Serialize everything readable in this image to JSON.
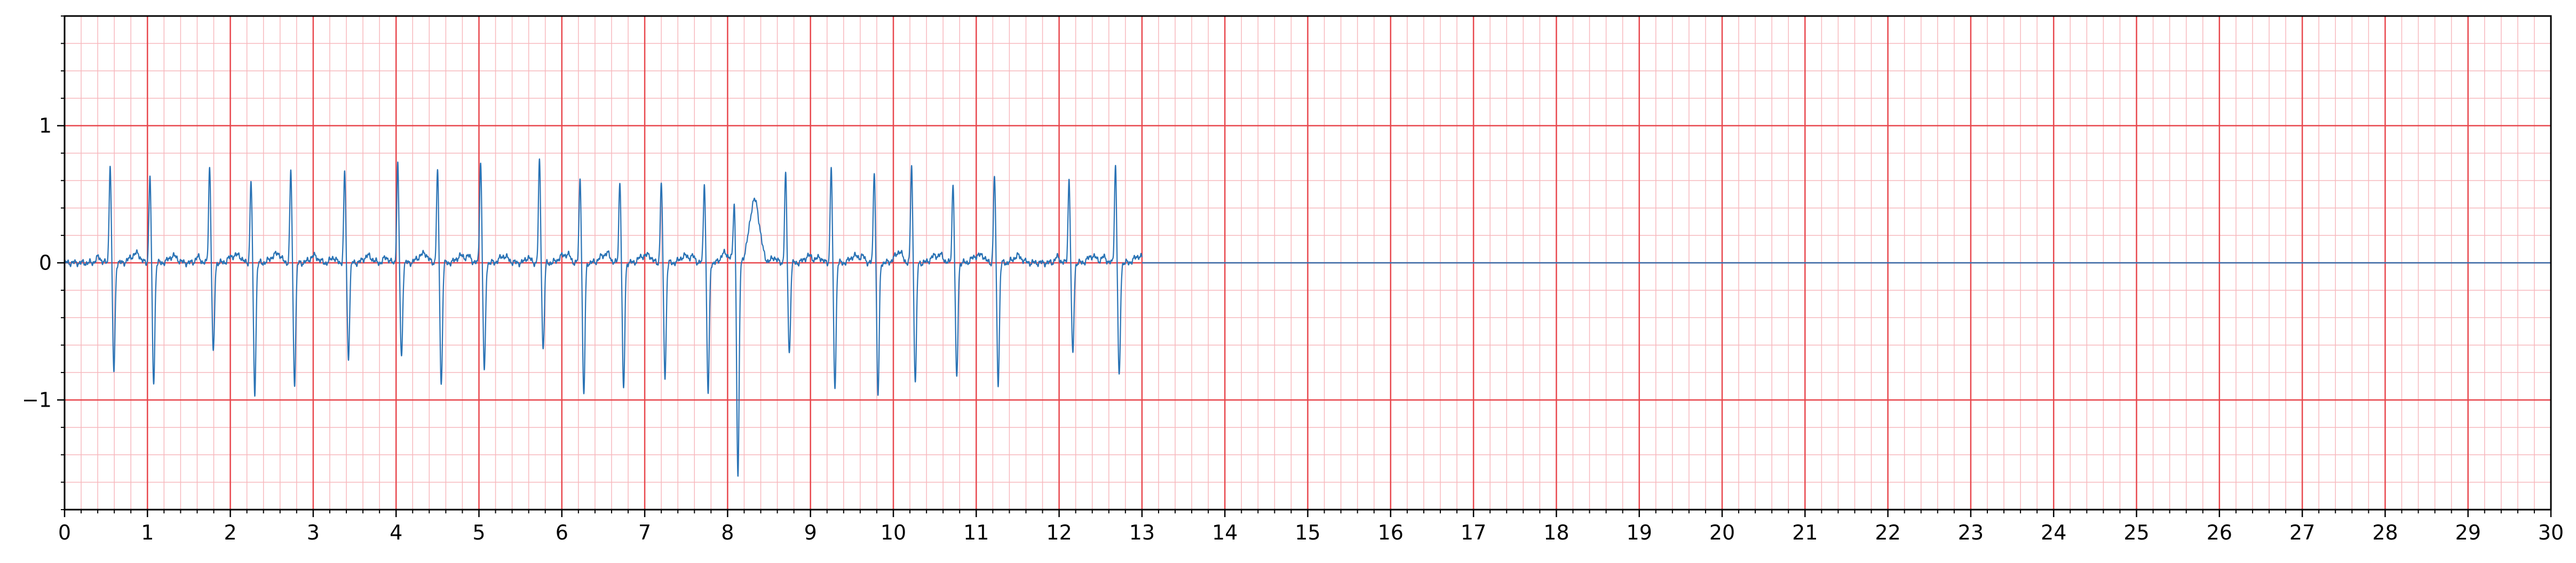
{
  "chart_data": {
    "type": "line",
    "title": "",
    "xlabel": "",
    "ylabel": "",
    "xlim": [
      0,
      30
    ],
    "ylim": [
      -1.8,
      1.8
    ],
    "x_major_ticks": [
      0,
      1,
      2,
      3,
      4,
      5,
      6,
      7,
      8,
      9,
      10,
      11,
      12,
      13,
      14,
      15,
      16,
      17,
      18,
      19,
      20,
      21,
      22,
      23,
      24,
      25,
      26,
      27,
      28,
      29,
      30
    ],
    "x_tick_labels": [
      "0",
      "1",
      "2",
      "3",
      "4",
      "5",
      "6",
      "7",
      "8",
      "9",
      "10",
      "11",
      "12",
      "13",
      "14",
      "15",
      "16",
      "17",
      "18",
      "19",
      "20",
      "21",
      "22",
      "23",
      "24",
      "25",
      "26",
      "27",
      "28",
      "29",
      "30"
    ],
    "y_major_ticks": [
      -1,
      0,
      1
    ],
    "y_tick_labels": [
      "−1",
      "0",
      "1"
    ],
    "grid": "on",
    "grid_major": "red",
    "grid_minor": "light red",
    "grid_major_color": "#e8474d",
    "grid_minor_color": "#f7b8bd",
    "line_color": "#2a73b5",
    "series": [
      {
        "beat_times": [
          0.55,
          1.03,
          1.75,
          2.25,
          2.73,
          3.38,
          4.02,
          4.5,
          5.02,
          5.73,
          6.22,
          6.7,
          7.2,
          7.72,
          8.08,
          8.7,
          9.25,
          9.77,
          10.22,
          10.72,
          11.22,
          12.12,
          12.68
        ],
        "r_peaks": [
          0.72,
          0.64,
          0.71,
          0.6,
          0.67,
          0.66,
          0.72,
          0.67,
          0.75,
          0.75,
          0.62,
          0.6,
          0.59,
          0.59,
          0.42,
          0.65,
          0.7,
          0.68,
          0.71,
          0.58,
          0.64,
          0.61,
          0.72
        ],
        "s_troughs": [
          -0.79,
          -0.88,
          -0.66,
          -0.95,
          -0.88,
          -0.69,
          -0.69,
          -0.89,
          -0.79,
          -0.63,
          -0.97,
          -0.93,
          -0.83,
          -0.95,
          -1.57,
          -0.66,
          -0.91,
          -0.97,
          -0.87,
          -0.85,
          -0.88,
          -0.67,
          -0.84
        ],
        "wave_bump": {
          "center": 8.32,
          "height": 0.42
        },
        "signal_end": 13.0,
        "baseline": 0.0
      }
    ]
  }
}
